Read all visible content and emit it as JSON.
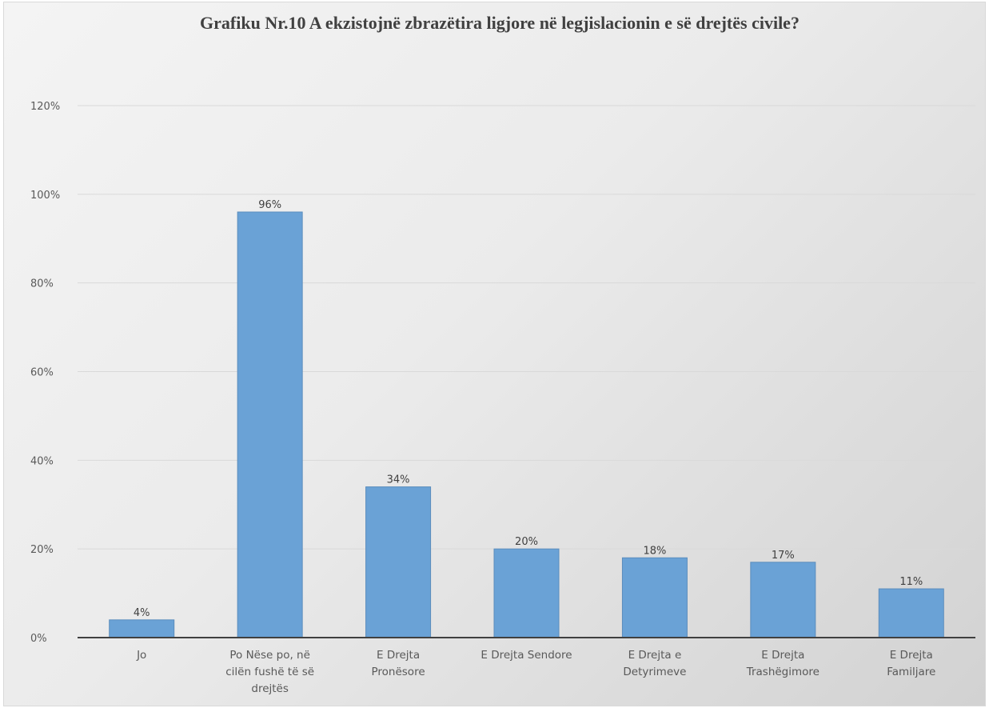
{
  "chart_data": {
    "type": "bar",
    "title": "Grafiku Nr.10 A ekzistojnë zbrazëtira ligjore në legjislacionin e së drejtës civile?",
    "categories": [
      "Jo",
      "Po Nëse po, në cilën fushë të së drejtës",
      "E Drejta Pronësore",
      "E Drejta Sendore",
      "E Drejta e Detyrimeve",
      "E Drejta Trashëgimore",
      "E Drejta Familjare"
    ],
    "category_lines": [
      [
        "Jo"
      ],
      [
        "Po Nëse po, në",
        "cilën fushë të së",
        "drejtës"
      ],
      [
        "E Drejta",
        "Pronësore"
      ],
      [
        "E Drejta Sendore"
      ],
      [
        "E Drejta e",
        "Detyrimeve"
      ],
      [
        "E Drejta",
        "Trashëgimore"
      ],
      [
        "E Drejta",
        "Familjare"
      ]
    ],
    "values": [
      4,
      96,
      34,
      20,
      18,
      17,
      11
    ],
    "data_labels": [
      "4%",
      "96%",
      "34%",
      "20%",
      "18%",
      "17%",
      "11%"
    ],
    "y_ticks": [
      0,
      20,
      40,
      60,
      80,
      100,
      120
    ],
    "y_tick_labels": [
      "0%",
      "20%",
      "40%",
      "60%",
      "80%",
      "100%",
      "120%"
    ],
    "ylim": [
      0,
      120
    ],
    "xlabel": "",
    "ylabel": "",
    "grid": true,
    "legend": "none",
    "bar_color": "#6aa2d6",
    "bar_edge_color": "#5b8dbd",
    "grid_color": "#d9d9d9",
    "axis_color": "#404040"
  }
}
